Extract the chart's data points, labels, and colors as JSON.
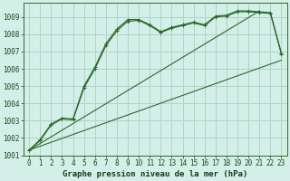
{
  "title": "Graphe pression niveau de la mer (hPa)",
  "bg_color": "#d4eee8",
  "grid_color": "#b0d4c8",
  "line_color": "#2d6a2d",
  "xlim": [
    -0.5,
    23.5
  ],
  "ylim": [
    1001,
    1009.8
  ],
  "xtick_labels": [
    "0",
    "1",
    "2",
    "3",
    "4",
    "5",
    "6",
    "7",
    "8",
    "9",
    "10",
    "11",
    "12",
    "13",
    "14",
    "15",
    "16",
    "17",
    "18",
    "19",
    "20",
    "21",
    "22",
    "23"
  ],
  "xticks": [
    0,
    1,
    2,
    3,
    4,
    5,
    6,
    7,
    8,
    9,
    10,
    11,
    12,
    13,
    14,
    15,
    16,
    17,
    18,
    19,
    20,
    21,
    22,
    23
  ],
  "yticks": [
    1001,
    1002,
    1003,
    1004,
    1005,
    1006,
    1007,
    1008,
    1009
  ],
  "line1_x": [
    0,
    1,
    2,
    3,
    4,
    5,
    6,
    7,
    8,
    9,
    10,
    11,
    12,
    13,
    14,
    15,
    16,
    17,
    18,
    19,
    20,
    21,
    22,
    23
  ],
  "line1_y": [
    1001.3,
    1001.9,
    1002.8,
    1003.15,
    1003.1,
    1005.0,
    1006.1,
    1007.45,
    1008.3,
    1008.85,
    1008.85,
    1008.55,
    1008.15,
    1008.4,
    1008.55,
    1008.7,
    1008.55,
    1009.05,
    1009.1,
    1009.35,
    1009.35,
    1009.3,
    1009.25,
    1006.9
  ],
  "line2_x": [
    0,
    1,
    2,
    3,
    4,
    5,
    6,
    7,
    8,
    9,
    10,
    11,
    12,
    13,
    14,
    15,
    16,
    17,
    18,
    19,
    20,
    21,
    22,
    23
  ],
  "line2_y": [
    1001.3,
    1001.85,
    1002.75,
    1003.1,
    1003.05,
    1004.9,
    1006.0,
    1007.35,
    1008.2,
    1008.75,
    1008.8,
    1008.5,
    1008.1,
    1008.35,
    1008.5,
    1008.65,
    1008.5,
    1009.0,
    1009.05,
    1009.3,
    1009.3,
    1009.25,
    1009.2,
    1006.85
  ],
  "line3_x": [
    0,
    23
  ],
  "line3_y": [
    1001.3,
    1006.5
  ],
  "line4_x": [
    0,
    21
  ],
  "line4_y": [
    1001.3,
    1009.35
  ],
  "fontsize_label": 6.5,
  "fontsize_tick": 5.5
}
